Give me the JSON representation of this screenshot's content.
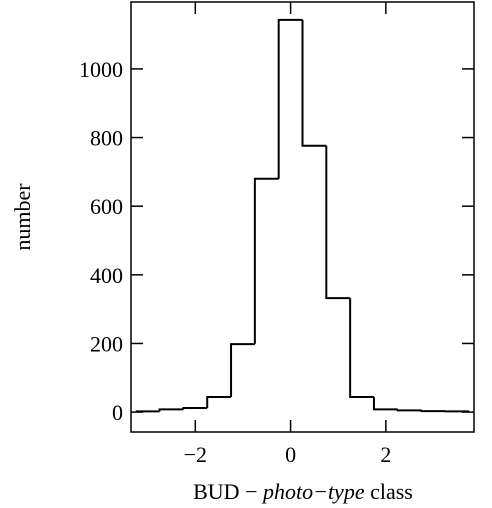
{
  "chart_data": {
    "type": "histogram",
    "bins": [
      -3.25,
      -2.75,
      -2.25,
      -1.75,
      -1.25,
      -0.75,
      -0.25,
      0.25,
      0.75,
      1.25,
      1.75,
      2.25,
      2.75,
      3.25,
      3.75
    ],
    "values": [
      2,
      8,
      12,
      44,
      198,
      680,
      1143,
      776,
      332,
      44,
      8,
      5,
      3,
      2
    ],
    "color": "#000000",
    "xlabel": [
      "BUD −",
      "photo−type",
      "class"
    ],
    "ylabel": "number",
    "xlim": [
      -3.35,
      3.85
    ],
    "ylim": [
      -58,
      1195
    ],
    "xticks": [
      {
        "value": -2,
        "label": "−2"
      },
      0,
      2
    ],
    "yticks": [
      0,
      200,
      400,
      600,
      800,
      1000
    ]
  }
}
